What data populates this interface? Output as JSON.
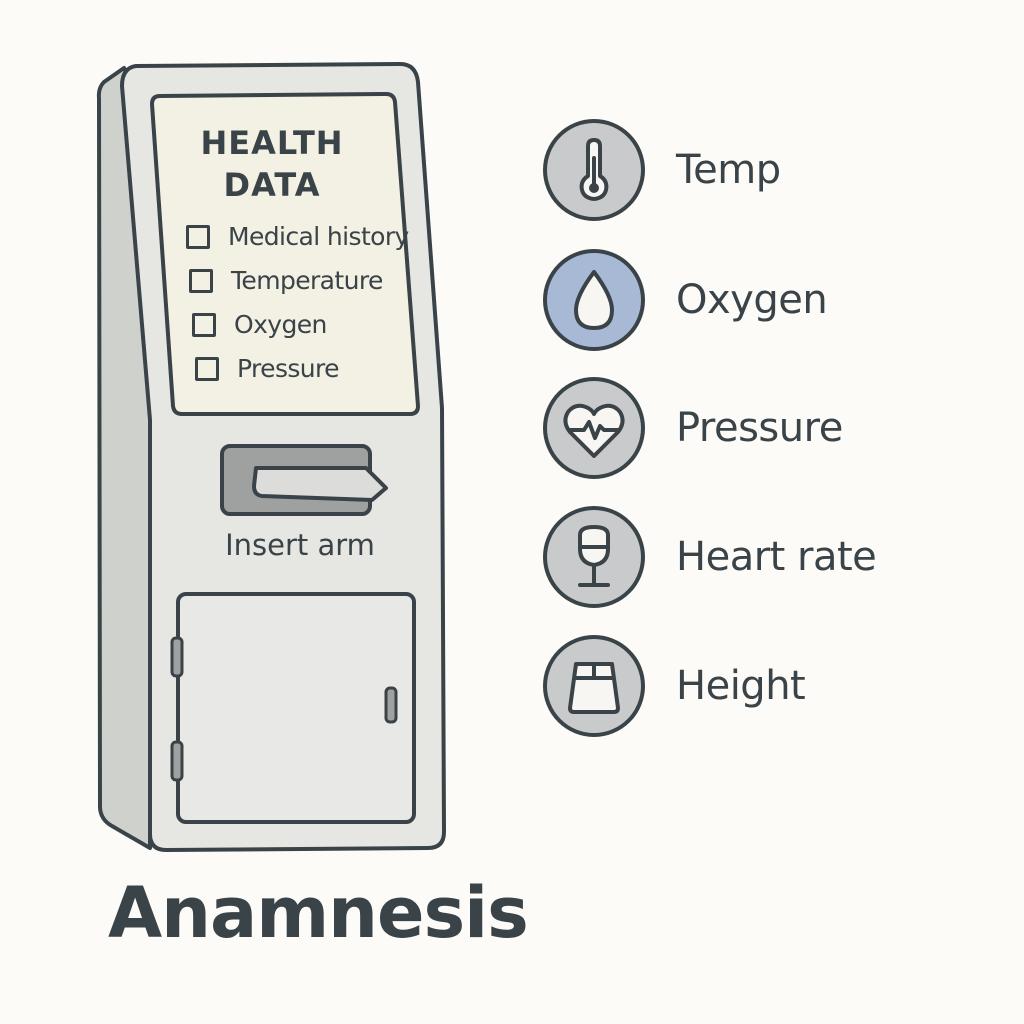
{
  "kiosk": {
    "screen_title": "HEALTH\nDATA",
    "checklist": [
      {
        "label": "Medical history"
      },
      {
        "label": "Temperature"
      },
      {
        "label": "Oxygen"
      },
      {
        "label": "Pressure"
      }
    ],
    "insert_label": "Insert arm"
  },
  "legend": [
    {
      "label": "Temp",
      "icon": "thermometer-icon",
      "color": "#c9cacb"
    },
    {
      "label": "Oxygen",
      "icon": "water-drop-icon",
      "color": "#a8b9d6"
    },
    {
      "label": "Pressure",
      "icon": "heart-pulse-icon",
      "color": "#c9cacb"
    },
    {
      "label": "Heart rate",
      "icon": "goblet-icon",
      "color": "#c9cacb"
    },
    {
      "label": "Height",
      "icon": "weight-icon",
      "color": "#c9cacb"
    }
  ],
  "title": "Anamnesis",
  "colors": {
    "outline": "#3a4348",
    "kiosk_body": "#e6e7e3",
    "kiosk_side": "#cfd1cd",
    "screen": "#f3f0e4",
    "slot": "#9ea1a0",
    "background": "#fcfbf7"
  }
}
